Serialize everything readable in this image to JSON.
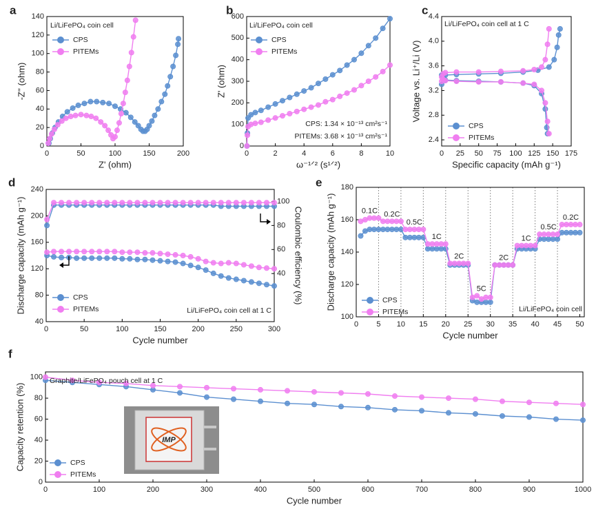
{
  "chart_data": [
    {
      "type": "line",
      "panel": "a",
      "xlabel": "Z' (ohm)",
      "ylabel": "-Z'' (ohm)",
      "xlim": [
        0,
        200
      ],
      "xticks": [
        0,
        50,
        100,
        150,
        200
      ],
      "ylim": [
        0,
        140
      ],
      "yticks": [
        0,
        20,
        40,
        60,
        80,
        100,
        120,
        140
      ],
      "annotations": [
        "Li/LiFePO₄ coin cell"
      ],
      "series": [
        {
          "name": "CPS",
          "color": "#5b8fd0",
          "x": [
            3,
            5,
            8,
            12,
            17,
            23,
            30,
            38,
            46,
            55,
            64,
            73,
            82,
            91,
            100,
            108,
            116,
            123,
            129,
            134,
            138,
            141,
            144,
            147,
            150,
            154,
            158,
            163,
            168,
            173,
            177,
            181,
            185,
            189,
            192,
            193
          ],
          "values": [
            3,
            8,
            14,
            20,
            26,
            32,
            37,
            41,
            44,
            46,
            48,
            48,
            47,
            46,
            43,
            40,
            36,
            31,
            26,
            22,
            18,
            16,
            16,
            18,
            22,
            27,
            33,
            40,
            48,
            56,
            65,
            75,
            86,
            98,
            110,
            116
          ]
        },
        {
          "name": "PITEMs",
          "color": "#f07ef0",
          "x": [
            2,
            4,
            7,
            11,
            16,
            22,
            28,
            35,
            42,
            50,
            58,
            65,
            72,
            79,
            85,
            90,
            94,
            97,
            100,
            103,
            106,
            109,
            112,
            115,
            118,
            121,
            124,
            127,
            130
          ],
          "values": [
            3,
            8,
            13,
            18,
            23,
            27,
            30,
            32,
            33,
            34,
            33,
            32,
            30,
            26,
            22,
            17,
            12,
            8,
            10,
            17,
            25,
            35,
            46,
            58,
            71,
            86,
            101,
            118,
            136
          ]
        }
      ]
    },
    {
      "type": "line",
      "panel": "b",
      "xlabel": "ω⁻¹ᐟ² (s¹ᐟ²)",
      "ylabel": "Z' (ohm)",
      "xlim": [
        0,
        10
      ],
      "xticks": [
        0,
        2,
        4,
        6,
        8,
        10
      ],
      "ylim": [
        0,
        600
      ],
      "yticks": [
        0,
        100,
        200,
        300,
        400,
        500,
        600
      ],
      "annotations": [
        "Li/LiFePO₄ coin cell",
        "CPS: 1.34 × 10⁻¹³ cm²s⁻¹",
        "PITEMs: 3.68 × 10⁻¹³ cm²s⁻¹"
      ],
      "x": [
        0.02,
        0.05,
        0.1,
        0.3,
        0.6,
        1,
        1.5,
        2,
        2.5,
        3,
        3.5,
        4,
        4.5,
        5,
        5.5,
        6,
        6.5,
        7,
        7.5,
        8,
        8.5,
        9,
        9.5,
        10
      ],
      "series": [
        {
          "name": "CPS",
          "color": "#5b8fd0",
          "values": [
            0,
            60,
            130,
            145,
            155,
            165,
            180,
            195,
            210,
            225,
            240,
            255,
            270,
            290,
            310,
            330,
            350,
            375,
            400,
            430,
            465,
            500,
            545,
            590
          ]
        },
        {
          "name": "PITEMs",
          "color": "#f07ef0",
          "values": [
            0,
            50,
            90,
            100,
            105,
            110,
            120,
            130,
            140,
            150,
            160,
            170,
            180,
            190,
            205,
            215,
            230,
            245,
            260,
            280,
            300,
            320,
            345,
            375
          ]
        }
      ]
    },
    {
      "type": "line",
      "panel": "c",
      "xlabel": "Specific capacity (mAh g⁻¹)",
      "ylabel": "Voltage vs. Li⁺/Li (V)",
      "xlim": [
        0,
        175
      ],
      "xticks": [
        0,
        25,
        50,
        75,
        100,
        125,
        150,
        175
      ],
      "ylim": [
        2.3,
        4.4
      ],
      "yticks": [
        2.4,
        2.8,
        3.2,
        3.6,
        {
          "value": 4,
          "label": "4.0"
        },
        4.4
      ],
      "annotations": [
        "Li/LiFePO₄ coin cell at 1 C"
      ],
      "series": [
        {
          "name": "CPS",
          "color": "#5b8fd0",
          "curves": [
            {
              "x": [
                0,
                2,
                5,
                20,
                50,
                80,
                110,
                130,
                145,
                152,
                156,
                158,
                160
              ],
              "values": [
                3.3,
                3.42,
                3.45,
                3.46,
                3.47,
                3.48,
                3.5,
                3.53,
                3.58,
                3.7,
                3.9,
                4.1,
                4.2
              ]
            },
            {
              "x": [
                0,
                2,
                5,
                20,
                50,
                80,
                110,
                125,
                135,
                140,
                142,
                143
              ],
              "values": [
                3.45,
                3.4,
                3.37,
                3.36,
                3.35,
                3.34,
                3.32,
                3.28,
                3.15,
                2.9,
                2.6,
                2.5
              ]
            }
          ]
        },
        {
          "name": "PITEMs",
          "color": "#f07ef0",
          "curves": [
            {
              "x": [
                0,
                2,
                5,
                20,
                50,
                80,
                110,
                125,
                135,
                140,
                143,
                145
              ],
              "values": [
                3.35,
                3.47,
                3.49,
                3.5,
                3.5,
                3.51,
                3.52,
                3.54,
                3.58,
                3.7,
                3.95,
                4.2
              ]
            },
            {
              "x": [
                0,
                2,
                5,
                20,
                50,
                80,
                110,
                125,
                135,
                140,
                143,
                145
              ],
              "values": [
                3.42,
                3.38,
                3.36,
                3.35,
                3.34,
                3.34,
                3.32,
                3.3,
                3.2,
                3.0,
                2.7,
                2.5
              ]
            }
          ]
        }
      ]
    },
    {
      "type": "line",
      "panel": "d",
      "xlabel": "Cycle number",
      "ylabel": "Discharge capacity (mAh g⁻¹)",
      "y2label": "Coulombic efficiency (%)",
      "xlim": [
        0,
        300
      ],
      "xticks": [
        0,
        50,
        100,
        150,
        200,
        250,
        300
      ],
      "ylim": [
        40,
        240
      ],
      "yticks": [
        40,
        80,
        120,
        160,
        200,
        240
      ],
      "y2lim": [
        0,
        110
      ],
      "y2ticks": [
        40,
        60,
        80,
        100
      ],
      "annotations": [
        "Li/LiFePO₄ coin cell at 1 C"
      ],
      "x": [
        1,
        10,
        20,
        30,
        40,
        50,
        60,
        70,
        80,
        90,
        100,
        110,
        120,
        130,
        140,
        150,
        160,
        170,
        180,
        190,
        200,
        210,
        220,
        230,
        240,
        250,
        260,
        270,
        280,
        290,
        300
      ],
      "series": [
        {
          "name": "CPS",
          "color": "#5b8fd0",
          "values": [
            140,
            138,
            137,
            137,
            136,
            136,
            136,
            136,
            136,
            136,
            135,
            135,
            134,
            134,
            133,
            132,
            131,
            130,
            128,
            125,
            122,
            118,
            113,
            109,
            106,
            104,
            102,
            100,
            98,
            96,
            94
          ],
          "y2_values": [
            80,
            97,
            97,
            97,
            97,
            97,
            97,
            97,
            97,
            97,
            97,
            97,
            97,
            97,
            97,
            97,
            97,
            97,
            97,
            97,
            97,
            97,
            97,
            96,
            96,
            96,
            96,
            96,
            96,
            96,
            96
          ]
        },
        {
          "name": "PITEMs",
          "color": "#f07ef0",
          "values": [
            145,
            146,
            146,
            146,
            146,
            146,
            146,
            146,
            146,
            146,
            145,
            145,
            145,
            144,
            144,
            143,
            142,
            141,
            140,
            138,
            135,
            131,
            129,
            128,
            129,
            128,
            126,
            124,
            122,
            121,
            120
          ],
          "y2_values": [
            85,
            99,
            99,
            99,
            99,
            99,
            99,
            99,
            99,
            99,
            99,
            99,
            99,
            99,
            99,
            99,
            99,
            99,
            99,
            99,
            99,
            99,
            99,
            99,
            99,
            99,
            99,
            99,
            99,
            99,
            99
          ]
        }
      ]
    },
    {
      "type": "line",
      "panel": "e",
      "xlabel": "Cycle number",
      "ylabel": "Discharge capacity (mAh g⁻¹)",
      "xlim": [
        0,
        51
      ],
      "xticks": [
        0,
        5,
        10,
        15,
        20,
        25,
        30,
        35,
        40,
        45,
        50
      ],
      "ylim": [
        100,
        180
      ],
      "yticks": [
        100,
        120,
        140,
        160,
        180
      ],
      "x_grid": true,
      "annotations": [
        "Li/LiFePO₄ coin cell"
      ],
      "rate_labels": [
        "0.1C",
        "0.2C",
        "0.5C",
        "1C",
        "2C",
        "5C",
        "2C",
        "1C",
        "0.5C",
        "0.2C"
      ],
      "x": [
        1,
        2,
        3,
        4,
        5,
        6,
        7,
        8,
        9,
        10,
        11,
        12,
        13,
        14,
        15,
        16,
        17,
        18,
        19,
        20,
        21,
        22,
        23,
        24,
        25,
        26,
        27,
        28,
        29,
        30,
        31,
        32,
        33,
        34,
        35,
        36,
        37,
        38,
        39,
        40,
        41,
        42,
        43,
        44,
        45,
        46,
        47,
        48,
        49,
        50
      ],
      "series": [
        {
          "name": "CPS",
          "color": "#5b8fd0",
          "values": [
            150,
            153,
            154,
            154,
            154,
            154,
            154,
            154,
            154,
            154,
            149,
            149,
            149,
            149,
            149,
            142,
            142,
            142,
            142,
            142,
            132,
            132,
            132,
            132,
            132,
            110,
            109,
            109,
            109,
            109,
            132,
            132,
            132,
            132,
            132,
            142,
            142,
            142,
            142,
            142,
            148,
            148,
            148,
            148,
            148,
            152,
            152,
            152,
            152,
            152
          ]
        },
        {
          "name": "PITEMs",
          "color": "#f07ef0",
          "values": [
            159,
            160,
            161,
            161,
            161,
            159,
            159,
            159,
            159,
            159,
            154,
            154,
            154,
            154,
            154,
            145,
            145,
            145,
            145,
            145,
            133,
            133,
            133,
            133,
            133,
            112,
            113,
            111,
            112,
            112,
            132,
            132,
            132,
            132,
            132,
            144,
            144,
            144,
            144,
            144,
            151,
            151,
            151,
            151,
            151,
            157,
            157,
            157,
            157,
            157
          ]
        }
      ]
    },
    {
      "type": "line",
      "panel": "f",
      "xlabel": "Cycle number",
      "ylabel": "Capacity retention (%)",
      "xlim": [
        0,
        1000
      ],
      "xticks": [
        0,
        100,
        200,
        300,
        400,
        500,
        600,
        700,
        800,
        900,
        1000
      ],
      "ylim": [
        0,
        105
      ],
      "yticks": [
        0,
        20,
        40,
        60,
        80,
        100
      ],
      "annotations": [
        "Graphite/LiFePO₄ pouch cell at 1 C"
      ],
      "inset_label": "IMP",
      "x": [
        0,
        50,
        100,
        150,
        200,
        250,
        300,
        350,
        400,
        450,
        500,
        550,
        600,
        650,
        700,
        750,
        800,
        850,
        900,
        950,
        1000
      ],
      "series": [
        {
          "name": "CPS",
          "color": "#5b8fd0",
          "values": [
            97,
            95,
            93,
            91,
            88,
            85,
            81,
            79,
            77,
            75,
            74,
            72,
            71,
            69,
            68,
            66,
            65,
            63,
            62,
            60,
            59
          ]
        },
        {
          "name": "PITEMs",
          "color": "#f07ef0",
          "values": [
            100,
            97,
            95,
            94,
            92,
            91,
            90,
            89,
            88,
            87,
            86,
            85,
            84,
            82,
            81,
            80,
            79,
            77,
            76,
            75,
            74
          ]
        }
      ]
    }
  ]
}
